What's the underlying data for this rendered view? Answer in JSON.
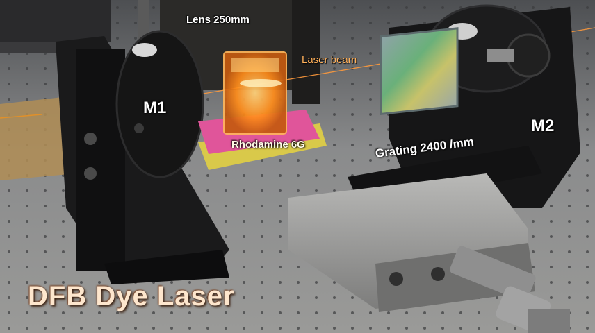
{
  "labels": {
    "lens": "Lens 250mm",
    "laser_beam": "Laser beam",
    "mirror1": "M1",
    "mirror2": "M2",
    "dye": "Rhodamine 6G",
    "grating": "Grating 2400 /mm",
    "title": "DFB  Dye Laser"
  },
  "colors": {
    "table": "#6b6c6e",
    "beam": "#ff9a3c",
    "title_text": "#fde6cd",
    "dye_glow": "#ff8c1a",
    "pink_pad": "#e0559a",
    "yellow_pad": "#d9c94a"
  }
}
